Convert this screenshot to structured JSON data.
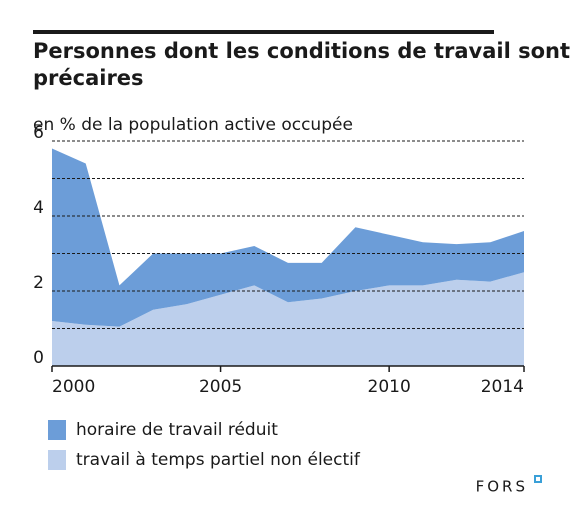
{
  "chart_data": {
    "type": "stacked_area",
    "title": "Personnes dont les conditions de travail sont précaires",
    "subtitle": "en % de la population active occupée",
    "x": [
      2000,
      2001,
      2002,
      2003,
      2004,
      2005,
      2006,
      2007,
      2008,
      2009,
      2010,
      2011,
      2012,
      2013,
      2014
    ],
    "series": [
      {
        "name": "travail à temps partiel non électif",
        "color": "#bccfec",
        "values": [
          1.2,
          1.1,
          1.05,
          1.5,
          1.65,
          1.9,
          2.15,
          1.7,
          1.8,
          2.0,
          2.15,
          2.15,
          2.3,
          2.25,
          2.5
        ]
      },
      {
        "name": "horaire de travail réduit",
        "color": "#6c9dd8",
        "values": [
          4.6,
          4.3,
          1.1,
          1.5,
          1.35,
          1.1,
          1.05,
          1.05,
          0.95,
          1.7,
          1.35,
          1.15,
          0.95,
          1.05,
          1.1
        ]
      }
    ],
    "xlim": [
      2000,
      2014
    ],
    "xticks": [
      2000,
      2005,
      2010,
      2014
    ],
    "ylim": [
      0,
      6
    ],
    "yticks": [
      0,
      2,
      4,
      6
    ],
    "y_minor_ticks": [
      1,
      3,
      5
    ],
    "grid": true,
    "legend": "bottom",
    "source": "FORS"
  }
}
